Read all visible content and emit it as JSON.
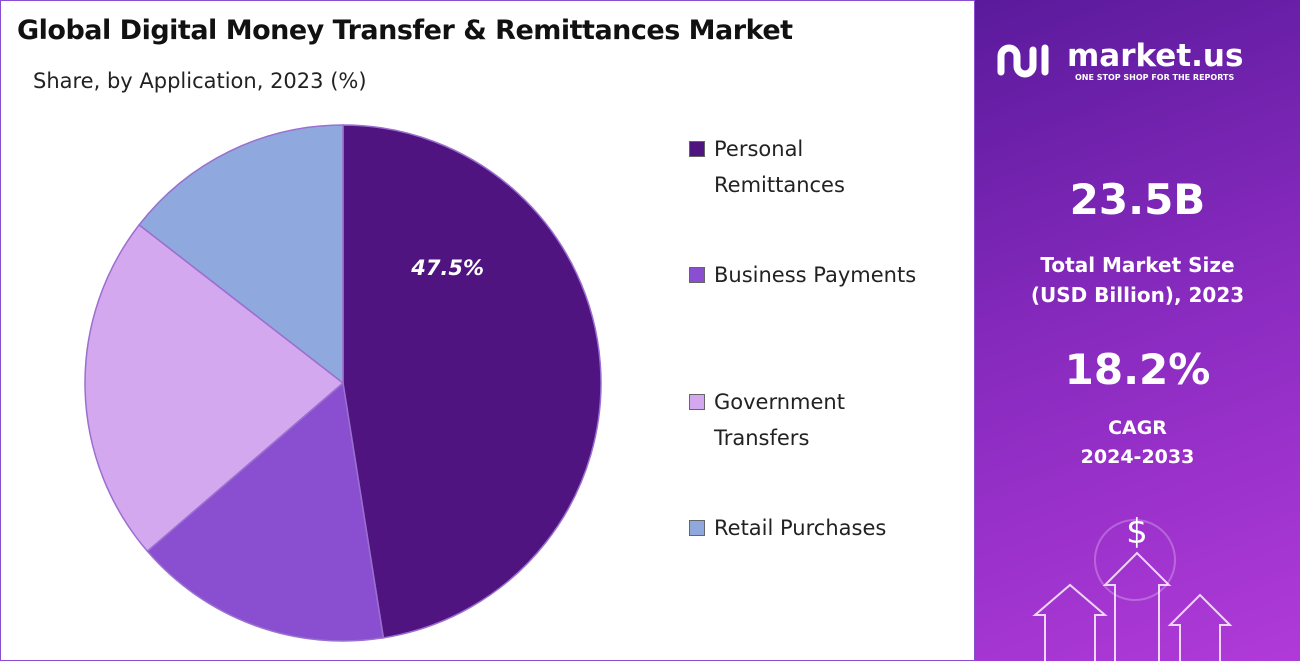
{
  "chart_data": {
    "type": "pie",
    "title": "Global Digital Money Transfer & Remittances Market",
    "subtitle": "Share, by Application, 2023 (%)",
    "categories": [
      "Personal Remittances",
      "Business Payments",
      "Government Transfers",
      "Retail Purchases"
    ],
    "values": [
      47.5,
      16.2,
      21.8,
      14.5
    ],
    "value_labels": [
      "47.5%",
      null,
      null,
      null
    ],
    "colors": [
      "#4f1480",
      "#8a4fd0",
      "#d4a8ee",
      "#8fa8de"
    ],
    "legend": "right"
  },
  "panel": {
    "brand": "market.us",
    "tagline": "ONE STOP SHOP FOR THE REPORTS",
    "market_size": "23.5B",
    "market_size_label": "Total Market Size (USD Billion), 2023",
    "cagr": "18.2%",
    "cagr_label": "CAGR",
    "cagr_period": "2024-2033"
  }
}
